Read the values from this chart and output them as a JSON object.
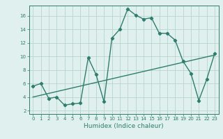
{
  "x": [
    0,
    1,
    2,
    3,
    4,
    5,
    6,
    7,
    8,
    9,
    10,
    11,
    12,
    13,
    14,
    15,
    16,
    17,
    18,
    19,
    20,
    21,
    22,
    23
  ],
  "y_curve": [
    5.6,
    6.0,
    3.8,
    4.0,
    2.8,
    3.0,
    3.1,
    9.8,
    7.3,
    3.3,
    12.7,
    14.0,
    17.0,
    16.1,
    15.5,
    15.7,
    13.4,
    13.4,
    12.4,
    9.3,
    7.5,
    3.5,
    6.6,
    10.4
  ],
  "trend_x": [
    0,
    23
  ],
  "trend_y": [
    4.0,
    10.2
  ],
  "line_color": "#2e7d6e",
  "bg_color": "#dff0ee",
  "grid_color": "#b8d4d0",
  "xlabel": "Humidex (Indice chaleur)",
  "ylim": [
    1.5,
    17.5
  ],
  "xlim": [
    -0.5,
    23.5
  ],
  "yticks": [
    2,
    4,
    6,
    8,
    10,
    12,
    14,
    16
  ],
  "xticks": [
    0,
    1,
    2,
    3,
    4,
    5,
    6,
    7,
    8,
    9,
    10,
    11,
    12,
    13,
    14,
    15,
    16,
    17,
    18,
    19,
    20,
    21,
    22,
    23
  ],
  "xtick_labels": [
    "0",
    "1",
    "2",
    "3",
    "4",
    "5",
    "6",
    "7",
    "8",
    "9",
    "10",
    "11",
    "12",
    "13",
    "14",
    "15",
    "16",
    "17",
    "18",
    "19",
    "20",
    "21",
    "22",
    "23"
  ],
  "marker": "D",
  "markersize": 2.2,
  "linewidth": 1.0,
  "tick_fontsize": 5.0,
  "xlabel_fontsize": 6.5
}
